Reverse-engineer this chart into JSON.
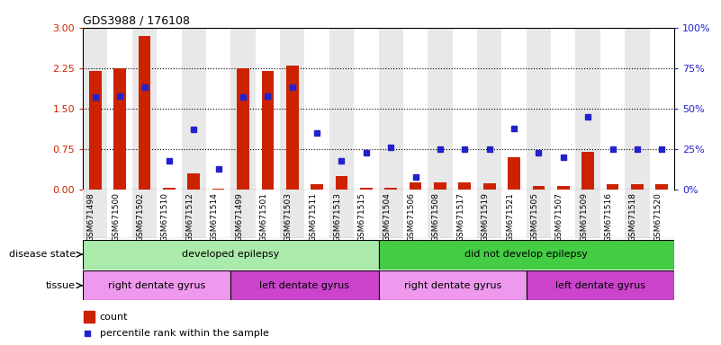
{
  "title": "GDS3988 / 176108",
  "samples": [
    "GSM671498",
    "GSM671500",
    "GSM671502",
    "GSM671510",
    "GSM671512",
    "GSM671514",
    "GSM671499",
    "GSM671501",
    "GSM671503",
    "GSM671511",
    "GSM671513",
    "GSM671515",
    "GSM671504",
    "GSM671506",
    "GSM671508",
    "GSM671517",
    "GSM671519",
    "GSM671521",
    "GSM671505",
    "GSM671507",
    "GSM671509",
    "GSM671516",
    "GSM671518",
    "GSM671520"
  ],
  "counts": [
    2.19,
    2.25,
    2.85,
    0.03,
    0.3,
    0.02,
    2.24,
    2.2,
    2.3,
    0.1,
    0.25,
    0.03,
    0.03,
    0.13,
    0.13,
    0.13,
    0.12,
    0.6,
    0.07,
    0.07,
    0.7,
    0.1,
    0.1,
    0.1
  ],
  "percentiles": [
    57,
    58,
    63,
    18,
    37,
    13,
    57,
    58,
    63,
    35,
    18,
    23,
    26,
    8,
    25,
    25,
    25,
    38,
    23,
    20,
    45,
    25,
    25,
    25
  ],
  "ylim_left": [
    0,
    3
  ],
  "ylim_right": [
    0,
    100
  ],
  "yticks_left": [
    0,
    0.75,
    1.5,
    2.25,
    3
  ],
  "yticks_right": [
    0,
    25,
    50,
    75,
    100
  ],
  "bar_color": "#cc2200",
  "dot_color": "#2222cc",
  "col_bg_even": "#e8e8e8",
  "col_bg_odd": "#ffffff",
  "disease_state_groups": [
    {
      "label": "developed epilepsy",
      "start": 0,
      "end": 12,
      "color": "#aaeaaa"
    },
    {
      "label": "did not develop epilepsy",
      "start": 12,
      "end": 24,
      "color": "#44cc44"
    }
  ],
  "tissue_groups": [
    {
      "label": "right dentate gyrus",
      "start": 0,
      "end": 6,
      "color": "#ee99ee"
    },
    {
      "label": "left dentate gyrus",
      "start": 6,
      "end": 12,
      "color": "#cc44cc"
    },
    {
      "label": "right dentate gyrus",
      "start": 12,
      "end": 18,
      "color": "#ee99ee"
    },
    {
      "label": "left dentate gyrus",
      "start": 18,
      "end": 24,
      "color": "#cc44cc"
    }
  ],
  "legend_count_label": "count",
  "legend_percentile_label": "percentile rank within the sample",
  "disease_state_label": "disease state",
  "tissue_label": "tissue"
}
